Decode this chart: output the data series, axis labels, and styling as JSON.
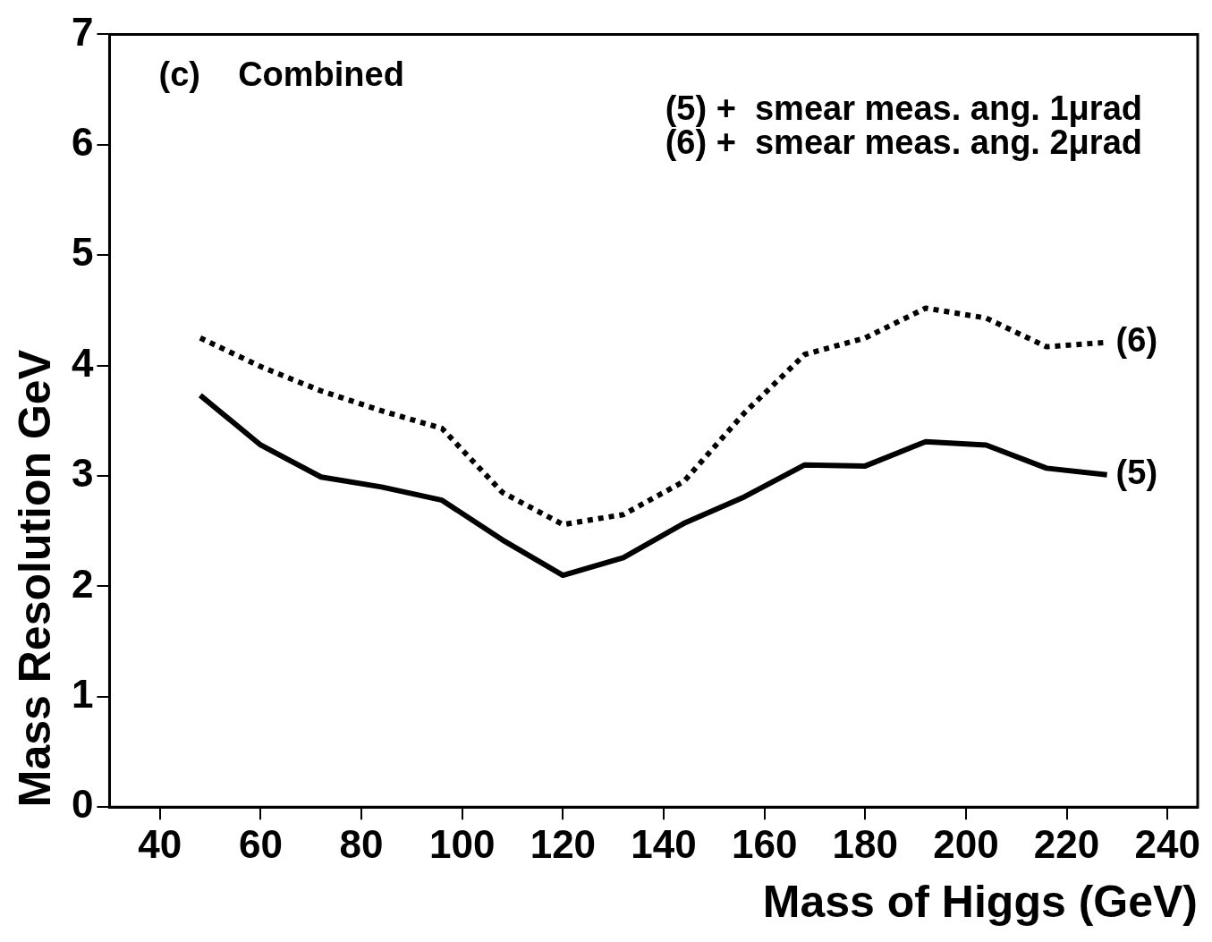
{
  "chart_data": {
    "type": "line",
    "xlabel": "Mass of Higgs (GeV)",
    "ylabel": "Mass Resolution GeV",
    "annotations": [
      "(c)    Combined",
      "(5) +  smear meas. ang. 1μrad",
      "(6) +  smear meas. ang. 2μrad"
    ],
    "x": [
      48,
      60,
      72,
      84,
      96,
      108,
      120,
      132,
      144,
      156,
      168,
      180,
      192,
      204,
      216,
      228
    ],
    "series": [
      {
        "name": "(5)",
        "color": "#000000",
        "line_style": "solid",
        "values": [
          3.73,
          3.28,
          2.99,
          2.9,
          2.78,
          2.42,
          2.1,
          2.26,
          2.57,
          2.81,
          3.1,
          3.09,
          3.31,
          3.28,
          3.07,
          3.01
        ]
      },
      {
        "name": "(6)",
        "color": "#000000",
        "line_style": "dotted",
        "values": [
          4.25,
          3.99,
          3.77,
          3.59,
          3.43,
          2.85,
          2.56,
          2.65,
          2.95,
          3.57,
          4.1,
          4.25,
          4.52,
          4.43,
          4.17,
          4.21
        ]
      }
    ],
    "xlim": [
      30,
      246
    ],
    "xticks": [
      40,
      60,
      80,
      100,
      120,
      140,
      160,
      180,
      200,
      220,
      240
    ],
    "ylim": [
      0,
      7
    ],
    "yticks": [
      0,
      1,
      2,
      3,
      4,
      5,
      6,
      7
    ],
    "grid": false,
    "legend": false,
    "marker": "none"
  }
}
